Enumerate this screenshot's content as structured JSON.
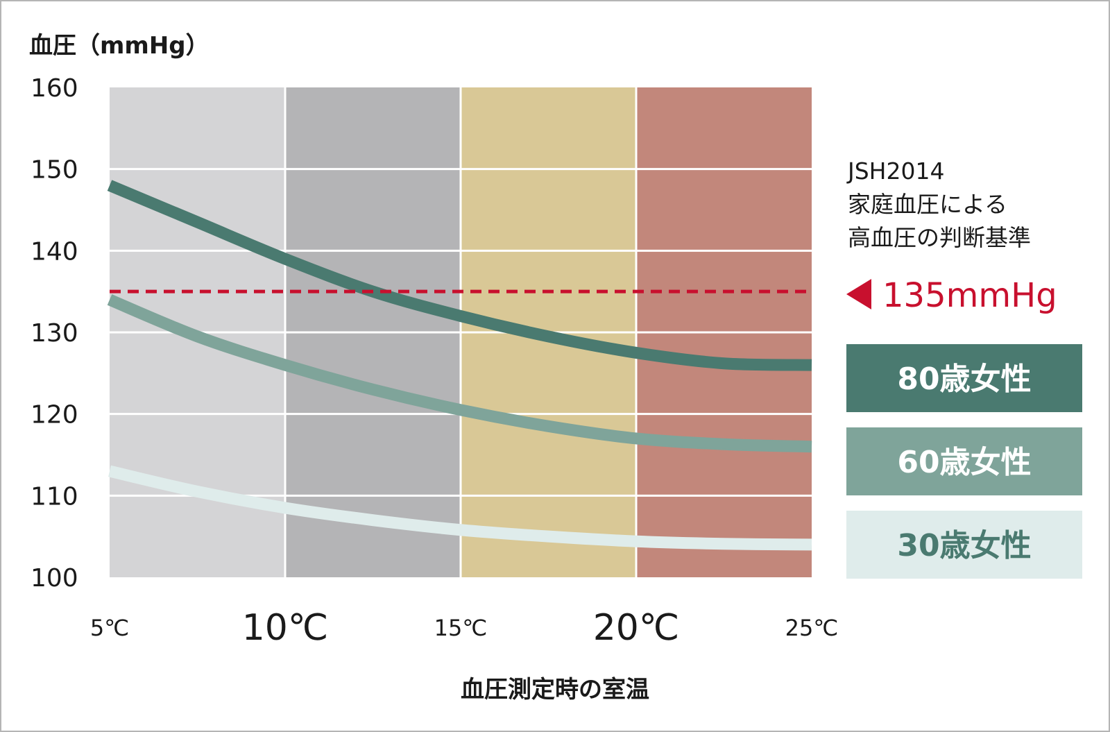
{
  "chart_data": {
    "type": "line",
    "ylabel": "血圧（mmHg）",
    "xlabel": "血圧測定時の室温",
    "ylim": [
      100,
      160
    ],
    "xlim": [
      5,
      25
    ],
    "y_ticks": [
      "100",
      "110",
      "120",
      "130",
      "140",
      "150",
      "160"
    ],
    "x_ticks": [
      {
        "value": 5,
        "label": "5℃",
        "emphasis": false
      },
      {
        "value": 10,
        "label": "10℃",
        "emphasis": true
      },
      {
        "value": 15,
        "label": "15℃",
        "emphasis": false
      },
      {
        "value": 20,
        "label": "20℃",
        "emphasis": true
      },
      {
        "value": 25,
        "label": "25℃",
        "emphasis": false
      }
    ],
    "grid": true,
    "bands": [
      {
        "from": 5,
        "to": 10,
        "color": "#d4d4d6"
      },
      {
        "from": 10,
        "to": 15,
        "color": "#b4b4b6"
      },
      {
        "from": 15,
        "to": 20,
        "color": "#d9c896"
      },
      {
        "from": 20,
        "to": 25,
        "color": "#c2877b"
      }
    ],
    "series": [
      {
        "name": "80歳女性",
        "color": "#4a7a70",
        "legend_text_color": "#ffffff",
        "x": [
          5,
          7.5,
          10,
          12.5,
          15,
          17.5,
          20,
          22.5,
          25
        ],
        "values": [
          148,
          143.5,
          139,
          135,
          132,
          129.5,
          127.5,
          126.2,
          126
        ]
      },
      {
        "name": "60歳女性",
        "color": "#7fa49a",
        "legend_text_color": "#ffffff",
        "x": [
          5,
          7.5,
          10,
          12.5,
          15,
          17.5,
          20,
          22.5,
          25
        ],
        "values": [
          134,
          129.5,
          126,
          123,
          120.5,
          118.5,
          117,
          116.3,
          116
        ]
      },
      {
        "name": "30歳女性",
        "color": "#dfeceb",
        "legend_text_color": "#4a7a70",
        "x": [
          5,
          7.5,
          10,
          12.5,
          15,
          17.5,
          20,
          22.5,
          25
        ],
        "values": [
          113,
          110.5,
          108.5,
          107,
          105.8,
          105,
          104.4,
          104.1,
          104
        ]
      }
    ],
    "threshold": {
      "value": 135,
      "color": "#c8102e",
      "label": "135mmHg",
      "note_lines": [
        "JSH2014",
        "家庭血圧による",
        "高血圧の判断基準"
      ]
    },
    "legend_placement": "right"
  }
}
